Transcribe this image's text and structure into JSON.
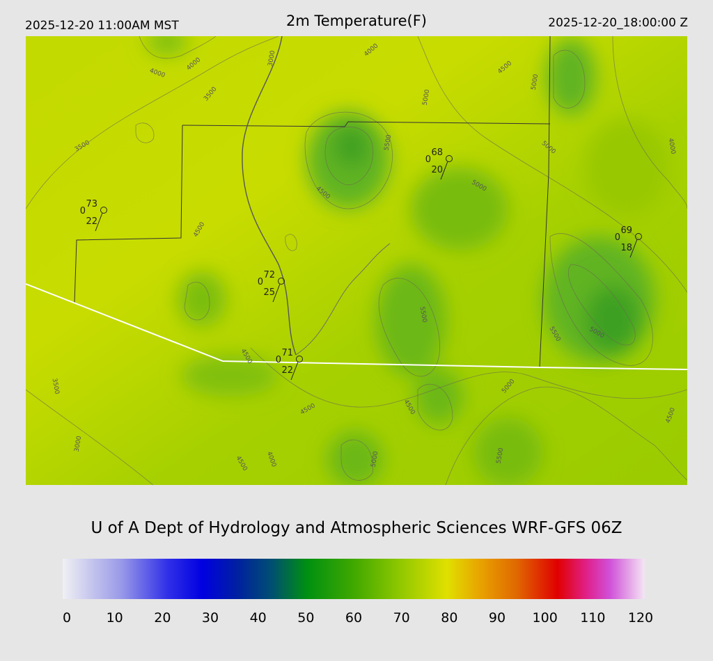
{
  "header": {
    "valid_local": "2025-12-20 11:00AM MST",
    "title": "2m Temperature(F)",
    "valid_utc": "2025-12-20_18:00:00 Z"
  },
  "map": {
    "stations": [
      {
        "temperature": 73,
        "wind": 0,
        "dewpoint": 22
      },
      {
        "temperature": 68,
        "wind": 0,
        "dewpoint": 20
      },
      {
        "temperature": 69,
        "wind": 0,
        "dewpoint": 18
      },
      {
        "temperature": 72,
        "wind": 0,
        "dewpoint": 25
      },
      {
        "temperature": 71,
        "wind": 0,
        "dewpoint": 22
      }
    ],
    "contour_labels": [
      "4000",
      "4000",
      "3000",
      "3500",
      "3500",
      "4000",
      "5000",
      "5500",
      "4500",
      "5000",
      "5000",
      "4000",
      "5000",
      "4500",
      "4500",
      "5500",
      "5500",
      "5000",
      "4500",
      "3500",
      "5000",
      "4500",
      "4500",
      "3000",
      "4500",
      "4500",
      "4000",
      "5000",
      "5500"
    ]
  },
  "footer": {
    "credit": "U of A Dept of Hydrology and Atmospheric Sciences WRF-GFS 06Z"
  },
  "colorbar": {
    "ticks": [
      0,
      10,
      20,
      30,
      40,
      50,
      60,
      70,
      80,
      90,
      100,
      110,
      120
    ]
  }
}
